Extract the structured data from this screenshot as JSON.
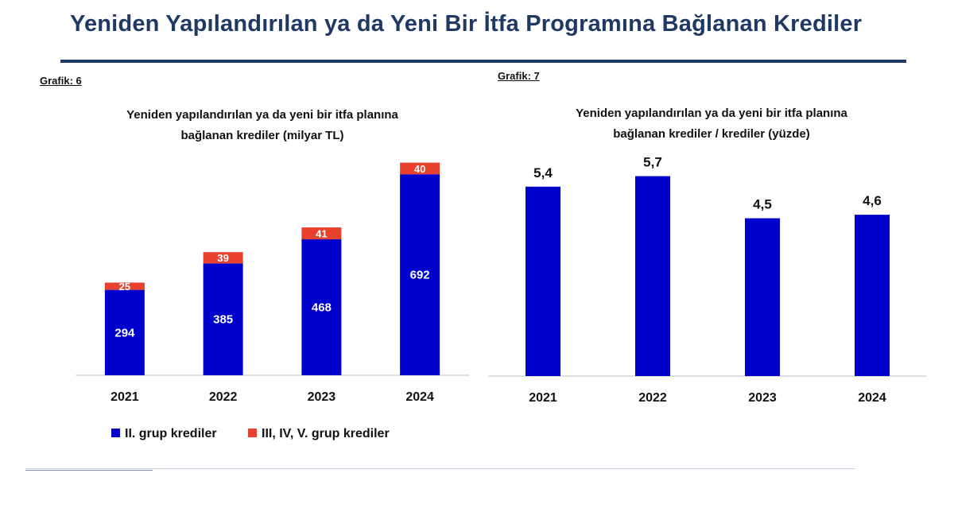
{
  "page": {
    "title": "Yeniden Yapılandırılan ya da Yeni Bir İtfa Programına Bağlanan Krediler"
  },
  "colors": {
    "title": "#1f3864",
    "group2": "#0000cc",
    "group345": "#e8412e",
    "axis": "#bfbfbf"
  },
  "chart6": {
    "label": "Grafik: 6",
    "title_line1": "Yeniden yapılandırılan ya da yeni bir itfa planına",
    "title_line2": "bağlanan krediler (milyar TL)",
    "legend": {
      "group2": "II. grup krediler",
      "group345": "III, IV, V. grup krediler"
    }
  },
  "chart7": {
    "label": "Grafik: 7",
    "title_line1": "Yeniden yapılandırılan ya da yeni bir itfa planına",
    "title_line2": "bağlanan krediler / krediler (yüzde)"
  },
  "chart_data": [
    {
      "type": "bar",
      "stacked": true,
      "title": "Yeniden yapılandırılan ya da yeni bir itfa planına bağlanan krediler (milyar TL)",
      "categories": [
        "2021",
        "2022",
        "2023",
        "2024"
      ],
      "series": [
        {
          "name": "II. grup krediler",
          "values": [
            294,
            385,
            468,
            692
          ],
          "labels": [
            "294",
            "385",
            "468",
            "692"
          ],
          "color": "#0000cc"
        },
        {
          "name": "III, IV, V. grup krediler",
          "values": [
            25,
            39,
            41,
            40
          ],
          "labels": [
            "25",
            "39",
            "41",
            "40"
          ],
          "color": "#e8412e"
        }
      ],
      "legend": "bottom",
      "grid": false,
      "ylim": [
        0,
        750
      ]
    },
    {
      "type": "bar",
      "title": "Yeniden yapılandırılan ya da yeni bir itfa planına bağlanan krediler / krediler (yüzde)",
      "categories": [
        "2021",
        "2022",
        "2023",
        "2024"
      ],
      "values": [
        5.4,
        5.7,
        4.5,
        4.6
      ],
      "labels": [
        "5,4",
        "5,7",
        "4,5",
        "4,6"
      ],
      "color": "#0000cc",
      "grid": false,
      "ylim": [
        0,
        7.3
      ]
    }
  ]
}
